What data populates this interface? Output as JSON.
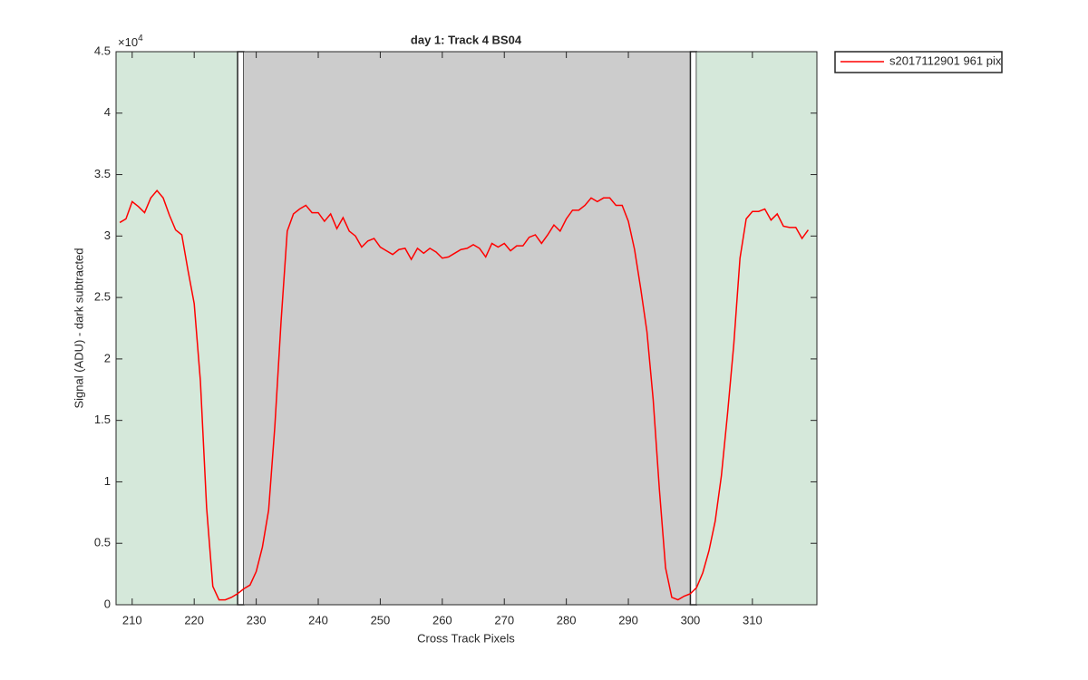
{
  "chart_data": {
    "type": "line",
    "title": "day 1: Track 4  BS04",
    "x_label": "Cross Track Pixels",
    "y_label": "Signal (ADU) - dark subtracted",
    "y_exponent": {
      "base": "×10",
      "power": "4"
    },
    "xlim": [
      207.4,
      320.4
    ],
    "ylim": [
      0,
      4.5
    ],
    "xticks": [
      210,
      220,
      230,
      240,
      250,
      260,
      270,
      280,
      290,
      300,
      310
    ],
    "yticks": [
      0,
      0.5,
      1,
      1.5,
      2,
      2.5,
      3,
      3.5,
      4,
      4.5
    ],
    "regions": [
      {
        "x0": 207.4,
        "x1": 227,
        "color": "#d5e8da"
      },
      {
        "x0": 227,
        "x1": 228,
        "color": "#ffffff"
      },
      {
        "x0": 228,
        "x1": 300,
        "color": "#cccccc"
      },
      {
        "x0": 300,
        "x1": 301,
        "color": "#ffffff"
      },
      {
        "x0": 301,
        "x1": 320.4,
        "color": "#d5e8da"
      }
    ],
    "x": [
      208,
      209,
      210,
      211,
      212,
      213,
      214,
      215,
      216,
      217,
      218,
      219,
      220,
      221,
      222,
      223,
      224,
      225,
      226,
      227,
      228,
      229,
      230,
      231,
      232,
      233,
      234,
      235,
      236,
      237,
      238,
      239,
      240,
      241,
      242,
      243,
      244,
      245,
      246,
      247,
      248,
      249,
      250,
      251,
      252,
      253,
      254,
      255,
      256,
      257,
      258,
      259,
      260,
      261,
      262,
      263,
      264,
      265,
      266,
      267,
      268,
      269,
      270,
      271,
      272,
      273,
      274,
      275,
      276,
      277,
      278,
      279,
      280,
      281,
      282,
      283,
      284,
      285,
      286,
      287,
      288,
      289,
      290,
      291,
      292,
      293,
      294,
      295,
      296,
      297,
      298,
      299,
      300,
      301,
      302,
      303,
      304,
      305,
      306,
      307,
      308,
      309,
      310,
      311,
      312,
      313,
      314,
      315,
      316,
      317,
      318,
      319
    ],
    "series": [
      {
        "name": "s2017112901 961 pix",
        "color": "#ff0000",
        "values": [
          3.11,
          3.14,
          3.28,
          3.24,
          3.19,
          3.31,
          3.37,
          3.31,
          3.17,
          3.05,
          3.01,
          2.72,
          2.45,
          1.82,
          0.79,
          0.15,
          0.04,
          0.04,
          0.06,
          0.09,
          0.13,
          0.16,
          0.27,
          0.47,
          0.77,
          1.45,
          2.3,
          3.04,
          3.18,
          3.22,
          3.25,
          3.19,
          3.19,
          3.12,
          3.18,
          3.06,
          3.15,
          3.04,
          3.0,
          2.91,
          2.96,
          2.98,
          2.91,
          2.88,
          2.85,
          2.89,
          2.9,
          2.81,
          2.9,
          2.86,
          2.9,
          2.87,
          2.82,
          2.83,
          2.86,
          2.89,
          2.9,
          2.93,
          2.9,
          2.83,
          2.94,
          2.91,
          2.94,
          2.88,
          2.92,
          2.92,
          2.99,
          3.01,
          2.94,
          3.01,
          3.09,
          3.04,
          3.14,
          3.21,
          3.21,
          3.25,
          3.31,
          3.28,
          3.31,
          3.31,
          3.25,
          3.25,
          3.12,
          2.89,
          2.57,
          2.22,
          1.67,
          0.94,
          0.3,
          0.06,
          0.04,
          0.07,
          0.09,
          0.14,
          0.26,
          0.44,
          0.68,
          1.05,
          1.56,
          2.12,
          2.82,
          3.14,
          3.2,
          3.2,
          3.22,
          3.13,
          3.18,
          3.08,
          3.07,
          3.07,
          2.98,
          3.05
        ]
      }
    ]
  }
}
